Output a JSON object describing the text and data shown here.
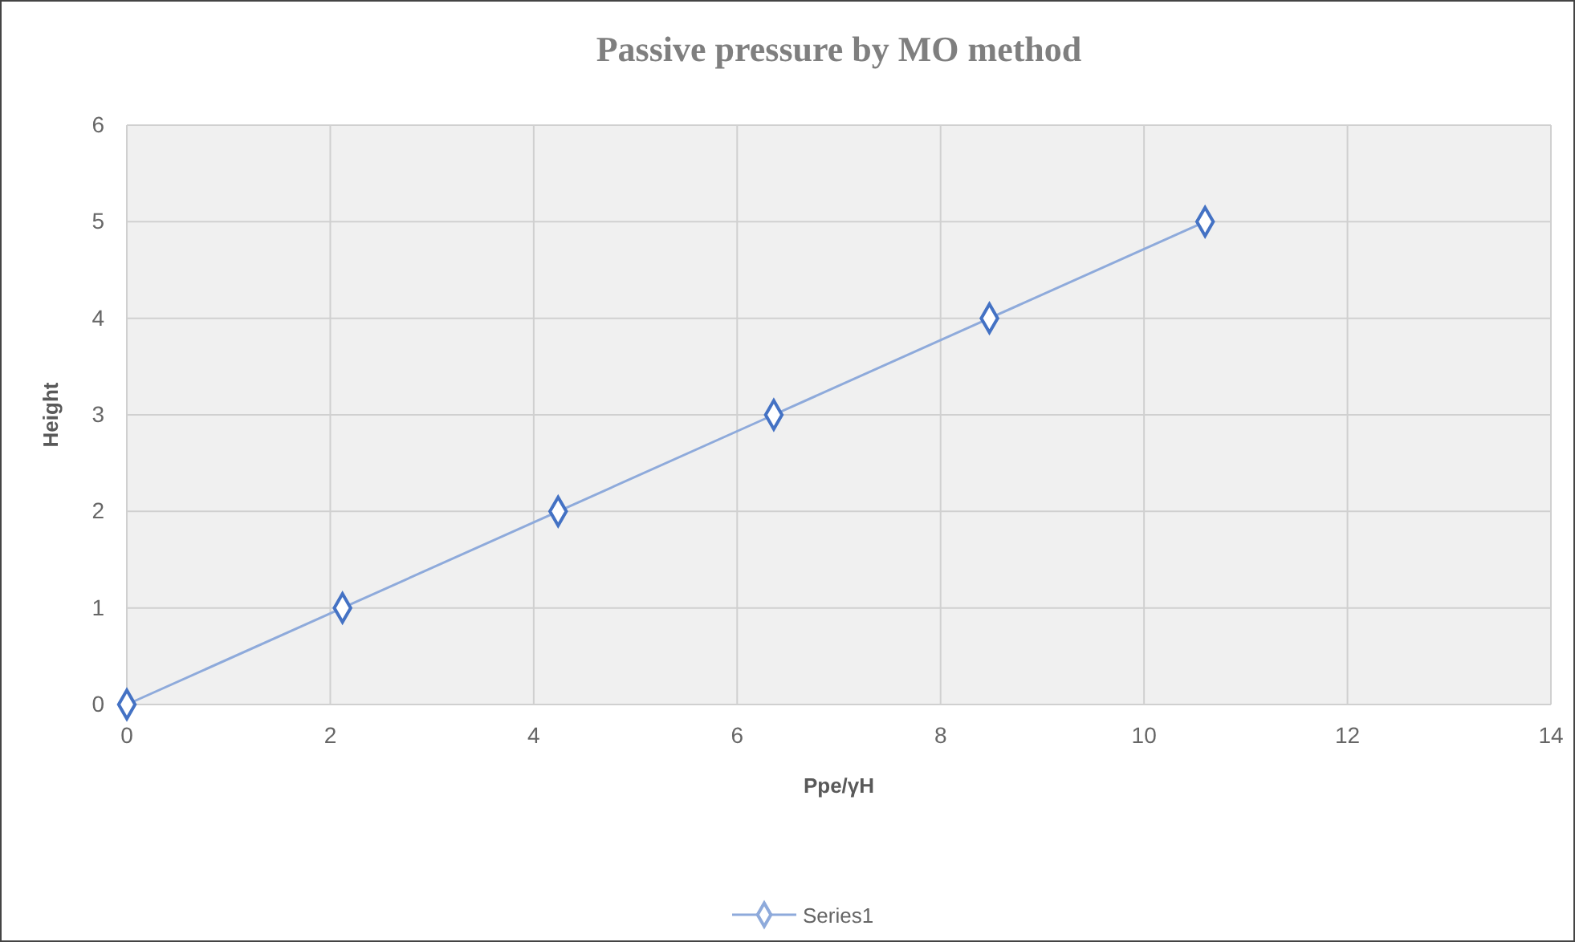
{
  "chart_data": {
    "type": "line",
    "title": "Passive pressure by MO method",
    "xlabel": "Ppe/γH",
    "ylabel": "Height",
    "x": [
      0,
      2.12,
      4.24,
      6.36,
      8.48,
      10.6
    ],
    "series": [
      {
        "name": "Series1",
        "color": "#8eaadb",
        "values": [
          0,
          1,
          2,
          3,
          4,
          5
        ]
      }
    ],
    "xlim": [
      0,
      14
    ],
    "xticks": [
      0,
      2,
      4,
      6,
      8,
      10,
      12,
      14
    ],
    "ylim": [
      0,
      6
    ],
    "yticks": [
      0,
      1,
      2,
      3,
      4,
      5,
      6
    ],
    "grid": true,
    "legend": "bottom",
    "marker": "diamond",
    "line_style": "solid"
  }
}
